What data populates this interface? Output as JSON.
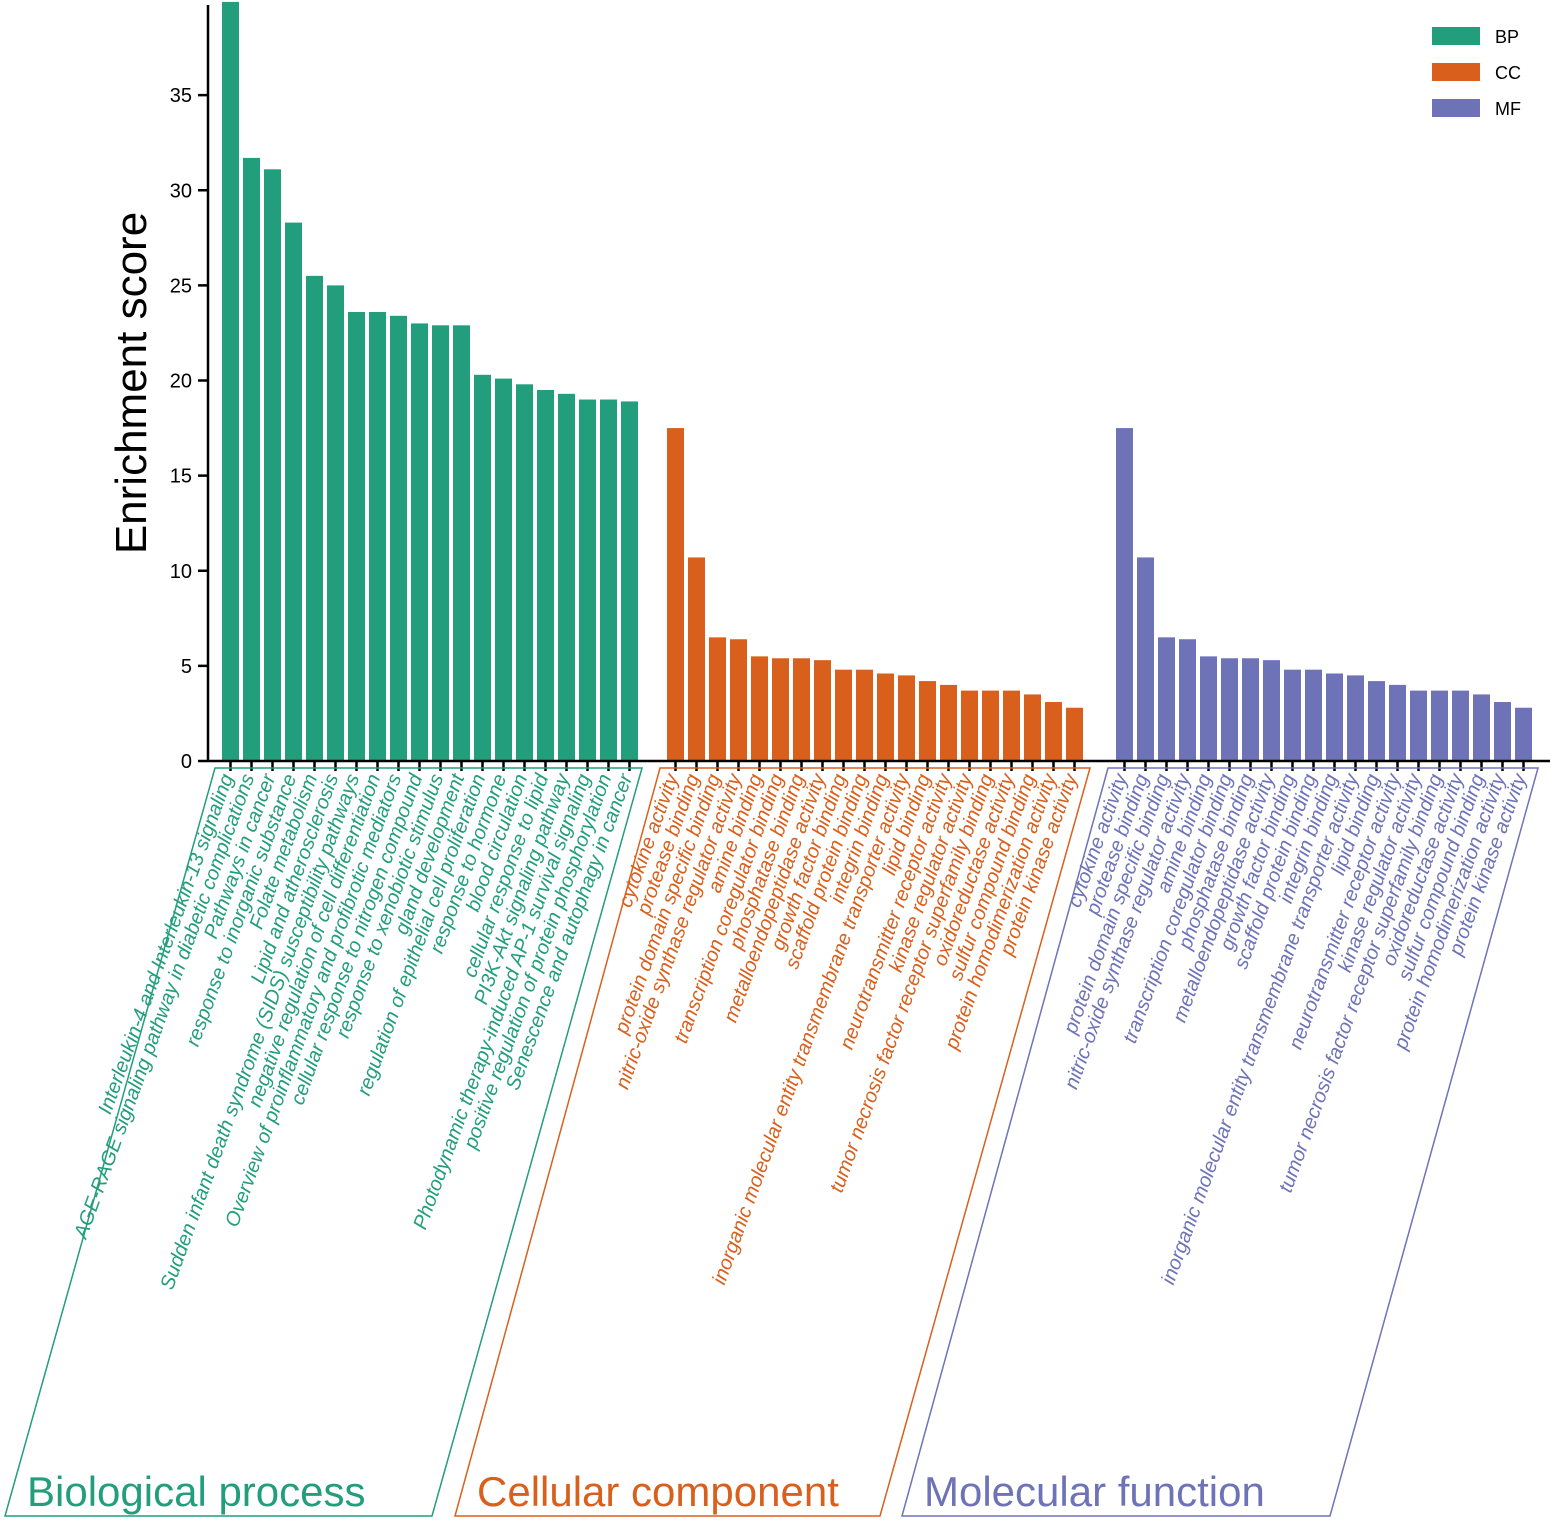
{
  "chart_data": {
    "type": "bar",
    "title": "",
    "xlabel": "",
    "ylabel": "Enrichment score",
    "ylim": [
      0,
      40
    ],
    "yticks": [
      0,
      5,
      10,
      15,
      20,
      25,
      30,
      35
    ],
    "legend_position": "top-right",
    "legend": [
      {
        "key": "BP",
        "label": "BP",
        "color": "#229e7c"
      },
      {
        "key": "CC",
        "label": "CC",
        "color": "#d9601c"
      },
      {
        "key": "MF",
        "label": "MF",
        "color": "#6e73b8"
      }
    ],
    "series": [
      {
        "name": "BP",
        "group_title": "Biological process",
        "color": "#229e7c",
        "categories": [
          "Interleukin-4 and Interleukin-13 signaling",
          "AGE-RAGE signaling pathway in diabetic complications",
          "Pathways in cancer",
          "response to inorganic substance",
          "Folate metabolism",
          "Lipid and atherosclerosis",
          "Sudden infant death syndrome (SIDS) susceptibility pathways",
          "negative regulation of cell differentiation",
          "Overview of proinflammatory and profibrotic mediators",
          "cellular response to nitrogen compound",
          "response to xenobiotic stimulus",
          "gland development",
          "regulation of epithelial cell proliferation",
          "response to hormone",
          "blood circulation",
          "cellular response to lipid",
          "PI3K-Akt signaling pathway",
          "Photodynamic therapy-induced AP-1 survival signaling",
          "positive regulation of protein phosphorylation",
          "Senescence and autophagy in cancer"
        ],
        "values": [
          39.9,
          31.7,
          31.1,
          28.3,
          25.5,
          25.0,
          23.6,
          23.6,
          23.4,
          23.0,
          22.9,
          22.9,
          20.3,
          20.1,
          19.8,
          19.5,
          19.3,
          19.0,
          19.0,
          18.9
        ]
      },
      {
        "name": "CC",
        "group_title": "Cellular component",
        "color": "#d9601c",
        "categories": [
          "cytokine activity",
          "protease binding",
          "protein domain specific binding",
          "nitric-oxide synthase regulator activity",
          "amine binding",
          "transcription coregulator binding",
          "phosphatase binding",
          "metalloendopeptidase activity",
          "growth factor binding",
          "scaffold protein binding",
          "integrin binding",
          "inorganic molecular entity transmembrane transporter activity",
          "lipid binding",
          "neurotransmitter receptor activity",
          "kinase regulator activity",
          "tumor necrosis factor receptor superfamily binding",
          "oxidoreductase activity",
          "sulfur compound binding",
          "protein homodimerization activity",
          "protein kinase activity"
        ],
        "values": [
          17.5,
          10.7,
          6.5,
          6.4,
          5.5,
          5.4,
          5.4,
          5.3,
          4.8,
          4.8,
          4.6,
          4.5,
          4.2,
          4.0,
          3.7,
          3.7,
          3.7,
          3.5,
          3.1,
          2.8
        ]
      },
      {
        "name": "MF",
        "group_title": "Molecular function",
        "color": "#6e73b8",
        "categories": [
          "cytokine activity",
          "protease binding",
          "protein domain specific binding",
          "nitric-oxide synthase regulator activity",
          "amine binding",
          "transcription coregulator binding",
          "phosphatase binding",
          "metalloendopeptidase activity",
          "growth factor binding",
          "scaffold protein binding",
          "integrin binding",
          "inorganic molecular entity transmembrane transporter activity",
          "lipid binding",
          "neurotransmitter receptor activity",
          "kinase regulator activity",
          "tumor necrosis factor receptor superfamily binding",
          "oxidoreductase activity",
          "sulfur compound binding",
          "protein homodimerization activity",
          "protein kinase activity"
        ],
        "values": [
          17.5,
          10.7,
          6.5,
          6.4,
          5.5,
          5.4,
          5.4,
          5.3,
          4.8,
          4.8,
          4.6,
          4.5,
          4.2,
          4.0,
          3.7,
          3.7,
          3.7,
          3.5,
          3.1,
          2.8
        ]
      }
    ]
  }
}
